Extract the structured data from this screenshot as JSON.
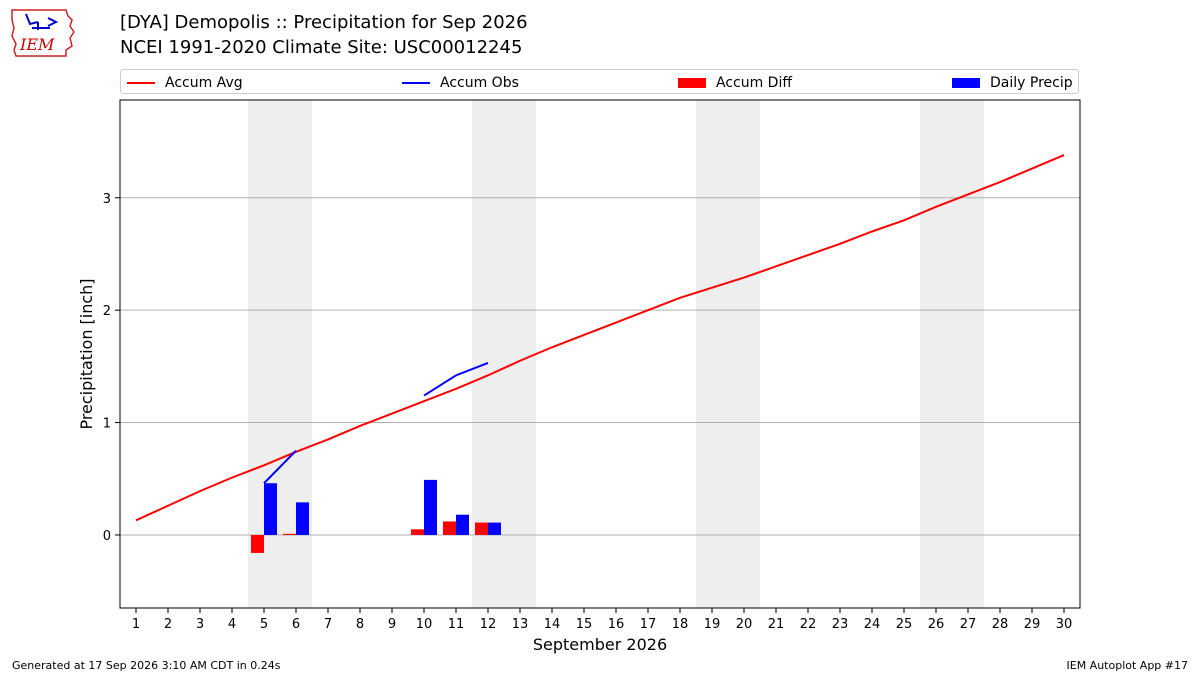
{
  "header": {
    "title_line1": "[DYA] Demopolis :: Precipitation for Sep 2026",
    "title_line2": "NCEI 1991-2020 Climate Site: USC00012245"
  },
  "logo": {
    "text": "IEM",
    "color": "#cc0000"
  },
  "legend": {
    "items": [
      {
        "label": "Accum Avg",
        "color": "#ff0000",
        "kind": "line"
      },
      {
        "label": "Accum Obs",
        "color": "#0000ff",
        "kind": "line"
      },
      {
        "label": "Accum Diff",
        "color": "#ff0000",
        "kind": "box"
      },
      {
        "label": "Daily Precip",
        "color": "#0000ff",
        "kind": "box"
      }
    ]
  },
  "footer": {
    "left": "Generated at 17 Sep 2026 3:10 AM CDT in 0.24s",
    "right": "IEM Autoplot App #17"
  },
  "chart_data": {
    "type": "bar",
    "title": "[DYA] Demopolis :: Precipitation for Sep 2026",
    "xlabel": "September 2026",
    "ylabel": "Precipitation [inch]",
    "x": [
      1,
      2,
      3,
      4,
      5,
      6,
      7,
      8,
      9,
      10,
      11,
      12,
      13,
      14,
      15,
      16,
      17,
      18,
      19,
      20,
      21,
      22,
      23,
      24,
      25,
      26,
      27,
      28,
      29,
      30
    ],
    "ylim": [
      -0.65,
      3.87
    ],
    "yticks": [
      0,
      1,
      2,
      3
    ],
    "grid": "horizontal",
    "weekend_shading_days": [
      [
        5,
        6
      ],
      [
        12,
        13
      ],
      [
        19,
        20
      ],
      [
        26,
        27
      ]
    ],
    "shading_color": "#eeeeee",
    "series": [
      {
        "name": "Accum Avg",
        "type": "line",
        "color": "#ff0000",
        "x": [
          1,
          2,
          3,
          4,
          5,
          6,
          7,
          8,
          9,
          10,
          11,
          12,
          13,
          14,
          15,
          16,
          17,
          18,
          19,
          20,
          21,
          22,
          23,
          24,
          25,
          26,
          27,
          28,
          29,
          30
        ],
        "values": [
          0.13,
          0.26,
          0.39,
          0.51,
          0.62,
          0.74,
          0.85,
          0.97,
          1.08,
          1.19,
          1.3,
          1.42,
          1.55,
          1.67,
          1.78,
          1.89,
          2.0,
          2.11,
          2.2,
          2.29,
          2.39,
          2.49,
          2.59,
          2.7,
          2.8,
          2.92,
          3.03,
          3.14,
          3.26,
          3.38
        ]
      },
      {
        "name": "Accum Obs",
        "type": "line",
        "color": "#0000ff",
        "segments": [
          {
            "x": [
              5,
              6
            ],
            "values": [
              0.46,
              0.75
            ]
          },
          {
            "x": [
              10,
              11,
              12
            ],
            "values": [
              1.24,
              1.42,
              1.53
            ]
          }
        ]
      },
      {
        "name": "Accum Diff",
        "type": "bar",
        "color": "#ff0000",
        "x": [
          5,
          6,
          10,
          11,
          12
        ],
        "values": [
          -0.16,
          0.01,
          0.05,
          0.12,
          0.11
        ]
      },
      {
        "name": "Daily Precip",
        "type": "bar",
        "color": "#0000ff",
        "x": [
          5,
          6,
          10,
          11,
          12
        ],
        "values": [
          0.46,
          0.29,
          0.49,
          0.18,
          0.11
        ]
      }
    ]
  }
}
